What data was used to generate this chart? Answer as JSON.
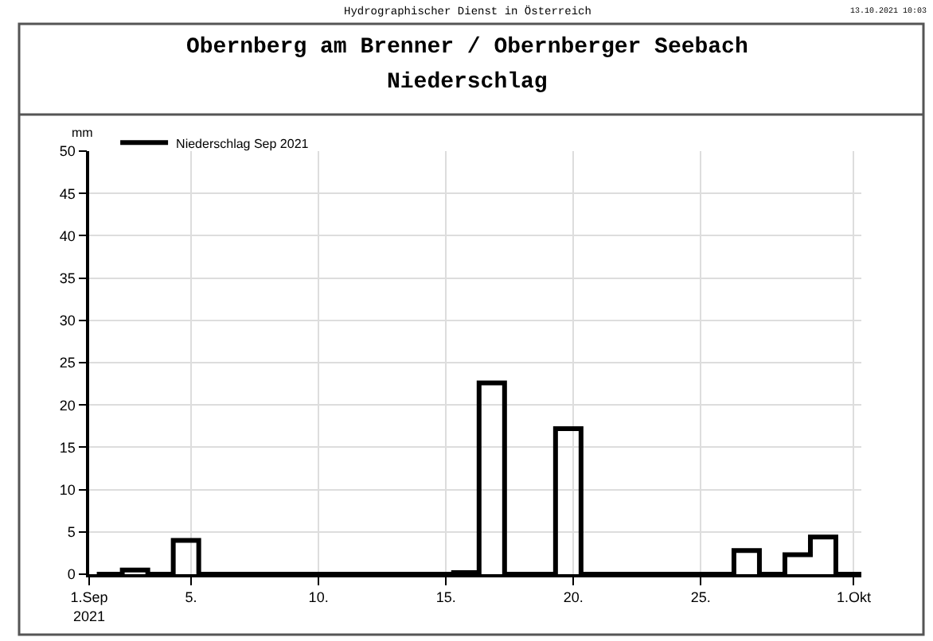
{
  "chart_data": {
    "type": "step",
    "title": "Obernberg am Brenner / Obernberger Seebach\nNiederschlag",
    "subtitle": "Hydrographischer Dienst in Österreich",
    "annotations": [
      "13.10.2021 10:03"
    ],
    "ylabel": "mm",
    "x": [
      "2021-09-01T07:12",
      "2021-09-02T07:12",
      "2021-09-03T07:12",
      "2021-09-04T07:12",
      "2021-09-05T07:12",
      "2021-09-06T07:12",
      "2021-09-07T07:12",
      "2021-09-08T07:12",
      "2021-09-09T07:12",
      "2021-09-10T07:12",
      "2021-09-11T07:12",
      "2021-09-12T07:12",
      "2021-09-13T07:12",
      "2021-09-14T07:12",
      "2021-09-15T07:12",
      "2021-09-16T07:12",
      "2021-09-17T07:12",
      "2021-09-18T07:12",
      "2021-09-19T07:12",
      "2021-09-20T07:12",
      "2021-09-21T07:12",
      "2021-09-22T07:12",
      "2021-09-23T07:12",
      "2021-09-24T07:12",
      "2021-09-25T07:12",
      "2021-09-26T07:12",
      "2021-09-27T07:12",
      "2021-09-28T07:12",
      "2021-09-29T07:12",
      "2021-09-30T07:12",
      "2021-10-01T07:12"
    ],
    "series": [
      {
        "name": "Niederschlag Sep 2021",
        "color": "#000000",
        "values": [
          0,
          0.5,
          0,
          4.0,
          0,
          0,
          0,
          0,
          0,
          0,
          0,
          0,
          0,
          0,
          0.2,
          22.6,
          0,
          0,
          17.2,
          0,
          0,
          0,
          0,
          0,
          0,
          2.8,
          0,
          2.3,
          4.4,
          0,
          0
        ]
      }
    ],
    "xlim": [
      "2021-09-01",
      "2021-10-01T07:12"
    ],
    "xticks": [
      {
        "value": "2021-09-01",
        "label": "1.Sep\n2021"
      },
      {
        "value": "2021-09-05",
        "label": "5."
      },
      {
        "value": "2021-09-10",
        "label": "10."
      },
      {
        "value": "2021-09-15",
        "label": "15."
      },
      {
        "value": "2021-09-20",
        "label": "20."
      },
      {
        "value": "2021-09-25",
        "label": "25."
      },
      {
        "value": "2021-10-01",
        "label": "1.Okt"
      }
    ],
    "ylim": [
      0,
      50
    ],
    "yticks": [
      0,
      5,
      10,
      15,
      20,
      25,
      30,
      35,
      40,
      45,
      50
    ],
    "grid": true,
    "legend": "top left",
    "line_style": "solid",
    "marker": "none"
  }
}
